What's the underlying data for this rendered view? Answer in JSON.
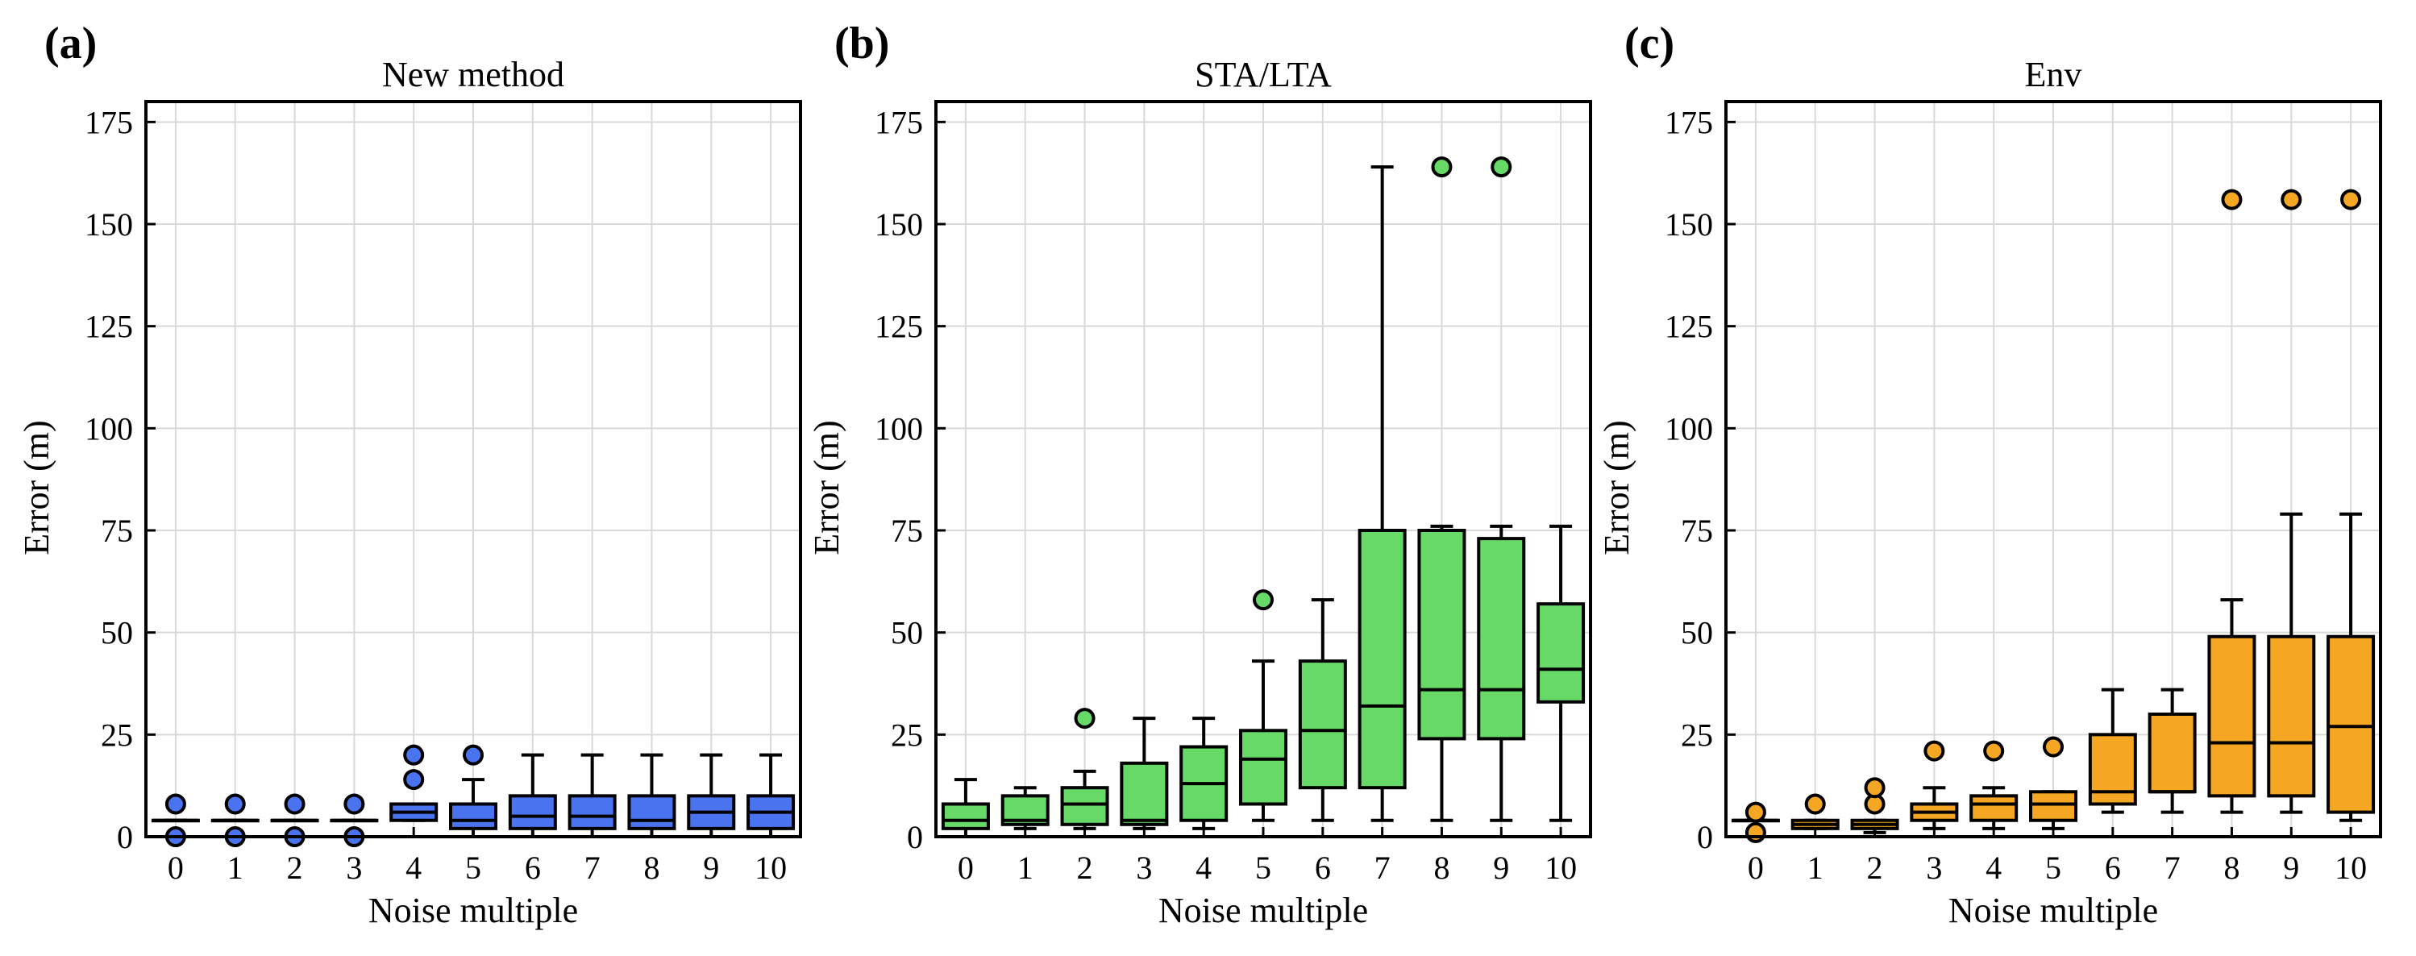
{
  "chart_data": [
    {
      "type": "box",
      "panel_label": "(a)",
      "title": "New method",
      "xlabel": "Noise multiple",
      "ylabel": "Error (m)",
      "ylim": [
        0,
        180
      ],
      "yticks": [
        0,
        25,
        50,
        75,
        100,
        125,
        150,
        175
      ],
      "categories": [
        "0",
        "1",
        "2",
        "3",
        "4",
        "5",
        "6",
        "7",
        "8",
        "9",
        "10"
      ],
      "color": "#4a73f0",
      "grid": true,
      "boxes": [
        {
          "whislo": 4,
          "q1": 4,
          "med": 4,
          "q3": 4,
          "whishi": 4,
          "fliers": [
            0,
            8
          ]
        },
        {
          "whislo": 4,
          "q1": 4,
          "med": 4,
          "q3": 4,
          "whishi": 4,
          "fliers": [
            0,
            8
          ]
        },
        {
          "whislo": 4,
          "q1": 4,
          "med": 4,
          "q3": 4,
          "whishi": 4,
          "fliers": [
            0,
            8
          ]
        },
        {
          "whislo": 4,
          "q1": 4,
          "med": 4,
          "q3": 4,
          "whishi": 4,
          "fliers": [
            0,
            8
          ]
        },
        {
          "whislo": 4,
          "q1": 4,
          "med": 6,
          "q3": 8,
          "whishi": 8,
          "fliers": [
            14,
            20
          ]
        },
        {
          "whislo": 0,
          "q1": 2,
          "med": 4,
          "q3": 8,
          "whishi": 14,
          "fliers": [
            20
          ]
        },
        {
          "whislo": 0,
          "q1": 2,
          "med": 5,
          "q3": 10,
          "whishi": 20,
          "fliers": []
        },
        {
          "whislo": 0,
          "q1": 2,
          "med": 5,
          "q3": 10,
          "whishi": 20,
          "fliers": []
        },
        {
          "whislo": 0,
          "q1": 2,
          "med": 4,
          "q3": 10,
          "whishi": 20,
          "fliers": []
        },
        {
          "whislo": 0,
          "q1": 2,
          "med": 6,
          "q3": 10,
          "whishi": 20,
          "fliers": []
        },
        {
          "whislo": 0,
          "q1": 2,
          "med": 6,
          "q3": 10,
          "whishi": 20,
          "fliers": []
        }
      ]
    },
    {
      "type": "box",
      "panel_label": "(b)",
      "title": "STA/LTA",
      "xlabel": "Noise multiple",
      "ylabel": "Error (m)",
      "ylim": [
        0,
        180
      ],
      "yticks": [
        0,
        25,
        50,
        75,
        100,
        125,
        150,
        175
      ],
      "categories": [
        "0",
        "1",
        "2",
        "3",
        "4",
        "5",
        "6",
        "7",
        "8",
        "9",
        "10"
      ],
      "color": "#66d966",
      "grid": true,
      "boxes": [
        {
          "whislo": 0,
          "q1": 2,
          "med": 4,
          "q3": 8,
          "whishi": 14,
          "fliers": []
        },
        {
          "whislo": 2,
          "q1": 3,
          "med": 4,
          "q3": 10,
          "whishi": 12,
          "fliers": []
        },
        {
          "whislo": 2,
          "q1": 3,
          "med": 8,
          "q3": 12,
          "whishi": 16,
          "fliers": [
            29
          ]
        },
        {
          "whislo": 2,
          "q1": 3,
          "med": 4,
          "q3": 18,
          "whishi": 29,
          "fliers": []
        },
        {
          "whislo": 2,
          "q1": 4,
          "med": 13,
          "q3": 22,
          "whishi": 29,
          "fliers": []
        },
        {
          "whislo": 4,
          "q1": 8,
          "med": 19,
          "q3": 26,
          "whishi": 43,
          "fliers": [
            58
          ]
        },
        {
          "whislo": 4,
          "q1": 12,
          "med": 26,
          "q3": 43,
          "whishi": 58,
          "fliers": []
        },
        {
          "whislo": 4,
          "q1": 12,
          "med": 32,
          "q3": 75,
          "whishi": 164,
          "fliers": []
        },
        {
          "whislo": 4,
          "q1": 24,
          "med": 36,
          "q3": 75,
          "whishi": 76,
          "fliers": [
            164
          ]
        },
        {
          "whislo": 4,
          "q1": 24,
          "med": 36,
          "q3": 73,
          "whishi": 76,
          "fliers": [
            164
          ]
        },
        {
          "whislo": 4,
          "q1": 33,
          "med": 41,
          "q3": 57,
          "whishi": 76,
          "fliers": []
        }
      ]
    },
    {
      "type": "box",
      "panel_label": "(c)",
      "title": "Env",
      "xlabel": "Noise multiple",
      "ylabel": "Error (m)",
      "ylim": [
        0,
        180
      ],
      "yticks": [
        0,
        25,
        50,
        75,
        100,
        125,
        150,
        175
      ],
      "categories": [
        "0",
        "1",
        "2",
        "3",
        "4",
        "5",
        "6",
        "7",
        "8",
        "9",
        "10"
      ],
      "color": "#f5a623",
      "grid": true,
      "boxes": [
        {
          "whislo": 4,
          "q1": 4,
          "med": 4,
          "q3": 4,
          "whishi": 4,
          "fliers": [
            1,
            6
          ]
        },
        {
          "whislo": 2,
          "q1": 2,
          "med": 3,
          "q3": 4,
          "whishi": 4,
          "fliers": [
            8
          ]
        },
        {
          "whislo": 1,
          "q1": 2,
          "med": 3,
          "q3": 4,
          "whishi": 4,
          "fliers": [
            8,
            12
          ]
        },
        {
          "whislo": 2,
          "q1": 4,
          "med": 6,
          "q3": 8,
          "whishi": 12,
          "fliers": [
            21
          ]
        },
        {
          "whislo": 2,
          "q1": 4,
          "med": 8,
          "q3": 10,
          "whishi": 12,
          "fliers": [
            21
          ]
        },
        {
          "whislo": 2,
          "q1": 4,
          "med": 8,
          "q3": 11,
          "whishi": 11,
          "fliers": [
            22
          ]
        },
        {
          "whislo": 6,
          "q1": 8,
          "med": 11,
          "q3": 25,
          "whishi": 36,
          "fliers": []
        },
        {
          "whislo": 6,
          "q1": 11,
          "med": 11,
          "q3": 30,
          "whishi": 36,
          "fliers": []
        },
        {
          "whislo": 6,
          "q1": 10,
          "med": 23,
          "q3": 49,
          "whishi": 58,
          "fliers": [
            156
          ]
        },
        {
          "whislo": 6,
          "q1": 10,
          "med": 23,
          "q3": 49,
          "whishi": 79,
          "fliers": [
            156
          ]
        },
        {
          "whislo": 4,
          "q1": 6,
          "med": 27,
          "q3": 49,
          "whishi": 79,
          "fliers": [
            156
          ]
        }
      ]
    }
  ]
}
